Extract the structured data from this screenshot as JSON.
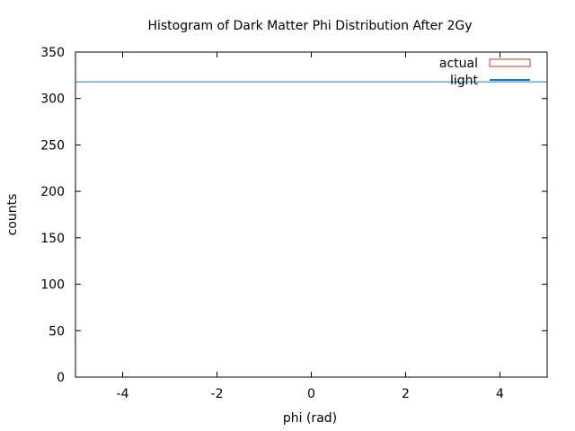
{
  "chart_data": {
    "type": "bar",
    "title": "Histogram of Dark Matter Phi Distribution After 2Gy",
    "xlabel": "phi (rad)",
    "ylabel": "counts",
    "xlim": [
      -5,
      5
    ],
    "ylim": [
      0,
      350
    ],
    "xticks": [
      -4,
      -2,
      0,
      2,
      4
    ],
    "yticks": [
      0,
      50,
      100,
      150,
      200,
      250,
      300,
      350
    ],
    "grid": false,
    "legend_position": "top-right",
    "series": [
      {
        "name": "actual",
        "style": "histogram-box",
        "color": "#c0392b",
        "values": []
      },
      {
        "name": "light",
        "style": "line",
        "color": "#1f77b4",
        "x": [
          -5,
          5
        ],
        "y": [
          318,
          318
        ]
      }
    ]
  }
}
